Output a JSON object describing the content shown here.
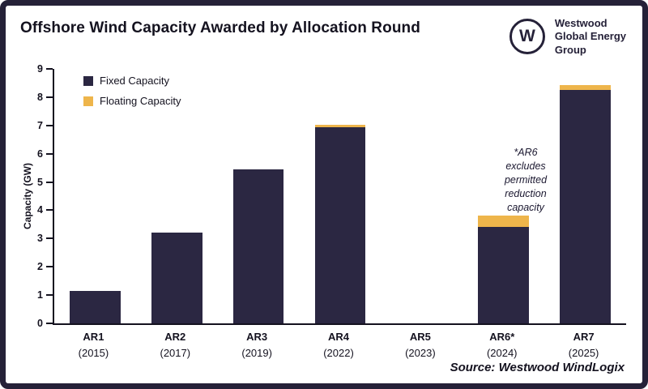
{
  "header": {
    "title": "Offshore Wind Capacity Awarded by Allocation Round"
  },
  "logo": {
    "monogram": "W",
    "lines": [
      "Westwood",
      "Global Energy",
      "Group"
    ]
  },
  "source": "Source: Westwood WindLogix",
  "chart_data": {
    "type": "bar",
    "stacked": true,
    "title": "Offshore Wind Capacity Awarded by Allocation Round",
    "xlabel": "",
    "ylabel": "Capacity (GW)",
    "ylim": [
      0,
      9
    ],
    "ytick_step": 1,
    "grid": false,
    "legend_position": "top-left-inside",
    "categories": [
      {
        "round": "AR1",
        "year": "(2015)"
      },
      {
        "round": "AR2",
        "year": "(2017)"
      },
      {
        "round": "AR3",
        "year": "(2019)"
      },
      {
        "round": "AR4",
        "year": "(2022)"
      },
      {
        "round": "AR5",
        "year": "(2023)"
      },
      {
        "round": "AR6*",
        "year": "(2024)"
      },
      {
        "round": "AR7",
        "year": "(2025)"
      }
    ],
    "series": [
      {
        "name": "Fixed Capacity",
        "color": "#2b2742",
        "values": [
          1.15,
          3.2,
          5.45,
          6.95,
          0,
          3.4,
          8.25
        ]
      },
      {
        "name": "Floating Capacity",
        "color": "#eeb54b",
        "values": [
          0,
          0,
          0,
          0.07,
          0,
          0.4,
          0.18
        ]
      }
    ],
    "annotation": "*AR6\nexcludes\npermitted\nreduction\ncapacity"
  }
}
